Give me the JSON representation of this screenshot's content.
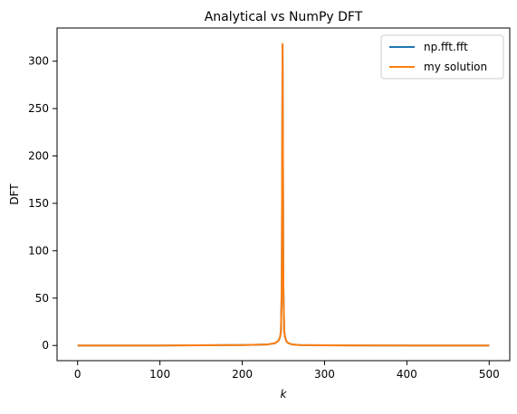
{
  "chart_data": {
    "type": "line",
    "title": "Analytical vs NumPy DFT",
    "xlabel": "k",
    "ylabel": "DFT",
    "xlim": [
      -25,
      525
    ],
    "ylim": [
      -16,
      335
    ],
    "xticks": [
      "0",
      "100",
      "200",
      "300",
      "400",
      "500"
    ],
    "yticks": [
      "0",
      "50",
      "100",
      "150",
      "200",
      "250",
      "300"
    ],
    "grid": false,
    "legend_position": "top-right",
    "series": [
      {
        "name": "np.fft.fft",
        "color": "#1f77b4",
        "x": [
          0,
          100,
          200,
          230,
          240,
          244,
          246,
          247,
          248,
          249,
          250,
          251,
          252,
          253,
          254,
          256,
          260,
          270,
          300,
          400,
          500
        ],
        "y": [
          0,
          0,
          0.5,
          1,
          2.5,
          5,
          9,
          15,
          60,
          318,
          60,
          15,
          9,
          6,
          4,
          2.5,
          1.2,
          0.5,
          0.2,
          0,
          0
        ]
      },
      {
        "name": "my solution",
        "color": "#ff7f0e",
        "x": [
          0,
          100,
          200,
          230,
          240,
          244,
          246,
          247,
          248,
          249,
          250,
          251,
          252,
          253,
          254,
          256,
          260,
          270,
          300,
          400,
          500
        ],
        "y": [
          0,
          0,
          0.5,
          1,
          2.5,
          5,
          9,
          15,
          60,
          318,
          60,
          15,
          9,
          6,
          4,
          2.5,
          1.2,
          0.5,
          0.2,
          0,
          0
        ]
      }
    ]
  }
}
